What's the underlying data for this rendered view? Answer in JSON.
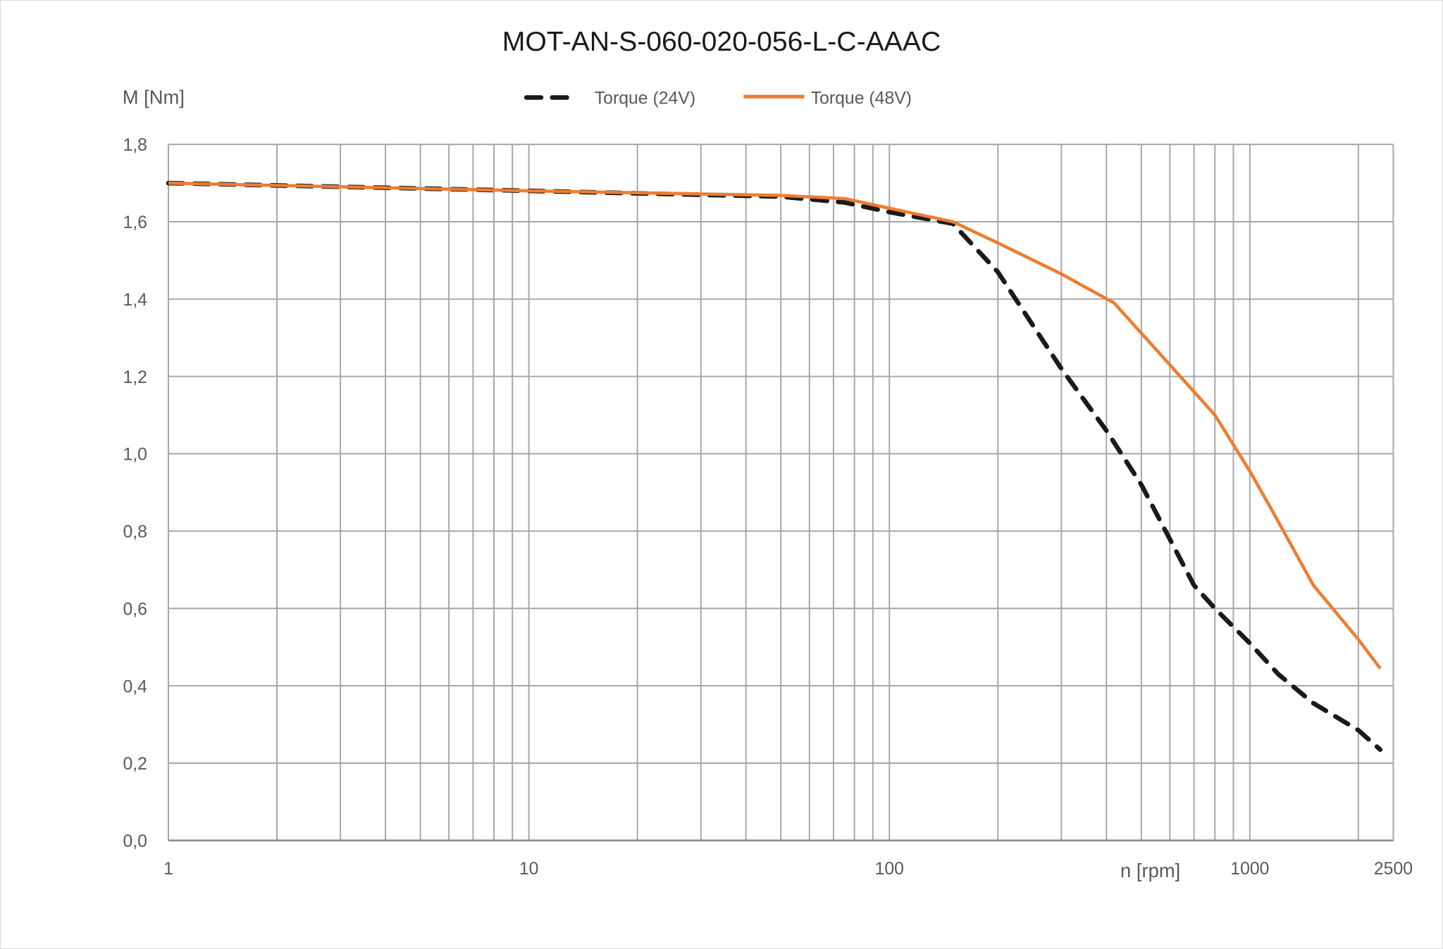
{
  "chart_data": {
    "type": "line",
    "title": "MOT-AN-S-060-020-056-L-C-AAAC",
    "xlabel": "n [rpm]",
    "ylabel": "M [Nm]",
    "x_scale": "log",
    "xlim": [
      1,
      2500
    ],
    "ylim": [
      0,
      1.8
    ],
    "x_ticks": [
      1,
      10,
      100,
      1000,
      2500
    ],
    "x_tick_labels": [
      "1",
      "10",
      "100",
      "1000",
      "2500"
    ],
    "y_ticks": [
      0,
      0.2,
      0.4,
      0.6,
      0.8,
      1.0,
      1.2,
      1.4,
      1.6,
      1.8
    ],
    "y_tick_labels": [
      "0,0",
      "0,2",
      "0,4",
      "0,6",
      "0,8",
      "1,0",
      "1,2",
      "1,4",
      "1,6",
      "1,8"
    ],
    "grid": true,
    "legend_position": "top-center",
    "series": [
      {
        "name": "Torque (24V)",
        "color": "#1a1a1a",
        "style": "dashed",
        "x": [
          1,
          10,
          50,
          75,
          100,
          150,
          200,
          300,
          400,
          500,
          700,
          800,
          1000,
          1200,
          1500,
          2000,
          2300
        ],
        "y": [
          1.7,
          1.68,
          1.665,
          1.65,
          1.625,
          1.595,
          1.47,
          1.22,
          1.06,
          0.92,
          0.66,
          0.6,
          0.51,
          0.43,
          0.355,
          0.285,
          0.235
        ]
      },
      {
        "name": "Torque (48V)",
        "color": "#ed7d31",
        "style": "solid",
        "x": [
          1,
          10,
          50,
          75,
          100,
          150,
          200,
          300,
          420,
          600,
          800,
          1000,
          1150,
          1500,
          2000,
          2300
        ],
        "y": [
          1.7,
          1.68,
          1.668,
          1.66,
          1.635,
          1.6,
          1.545,
          1.465,
          1.39,
          1.23,
          1.1,
          0.955,
          0.855,
          0.66,
          0.52,
          0.445
        ]
      }
    ]
  }
}
